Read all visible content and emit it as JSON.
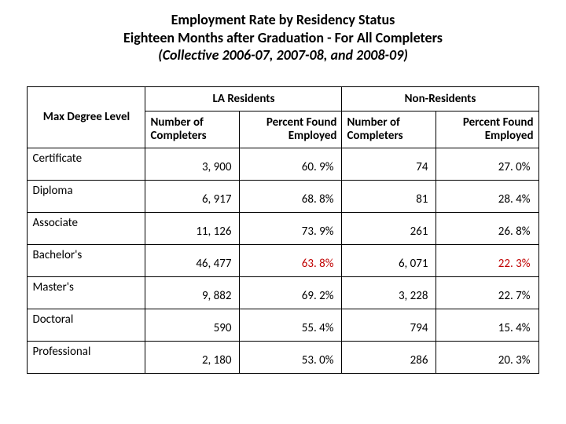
{
  "title": {
    "line1": "Employment Rate by Residency Status",
    "line2": "Eighteen Months after Graduation - For All Completers",
    "line3": "(Collective 2006-07, 2007-08, and 2008-09)"
  },
  "table": {
    "row_header": "Max Degree Level",
    "groups": [
      {
        "label": "LA Residents"
      },
      {
        "label": "Non-Residents"
      }
    ],
    "sub_headers": {
      "num": "Number of Completers",
      "pct": "Percent Found Employed"
    },
    "rows": [
      {
        "label": "Certificate",
        "la_num": "3, 900",
        "la_pct": "60. 9%",
        "nr_num": "74",
        "nr_pct": "27. 0%",
        "hl": false
      },
      {
        "label": "Diploma",
        "la_num": "6, 917",
        "la_pct": "68. 8%",
        "nr_num": "81",
        "nr_pct": "28. 4%",
        "hl": false
      },
      {
        "label": "Associate",
        "la_num": "11, 126",
        "la_pct": "73. 9%",
        "nr_num": "261",
        "nr_pct": "26. 8%",
        "hl": false
      },
      {
        "label": "Bachelor's",
        "la_num": "46, 477",
        "la_pct": "63. 8%",
        "nr_num": "6, 071",
        "nr_pct": "22. 3%",
        "hl": true
      },
      {
        "label": "Master's",
        "la_num": "9, 882",
        "la_pct": "69. 2%",
        "nr_num": "3, 228",
        "nr_pct": "22. 7%",
        "hl": false
      },
      {
        "label": "Doctoral",
        "la_num": "590",
        "la_pct": "55. 4%",
        "nr_num": "794",
        "nr_pct": "15. 4%",
        "hl": false
      },
      {
        "label": "Professional",
        "la_num": "2, 180",
        "la_pct": "53. 0%",
        "nr_num": "286",
        "nr_pct": "20. 3%",
        "hl": false
      }
    ]
  },
  "colors": {
    "highlight": "#c00000",
    "text": "#000000",
    "background": "#ffffff",
    "border": "#000000"
  }
}
